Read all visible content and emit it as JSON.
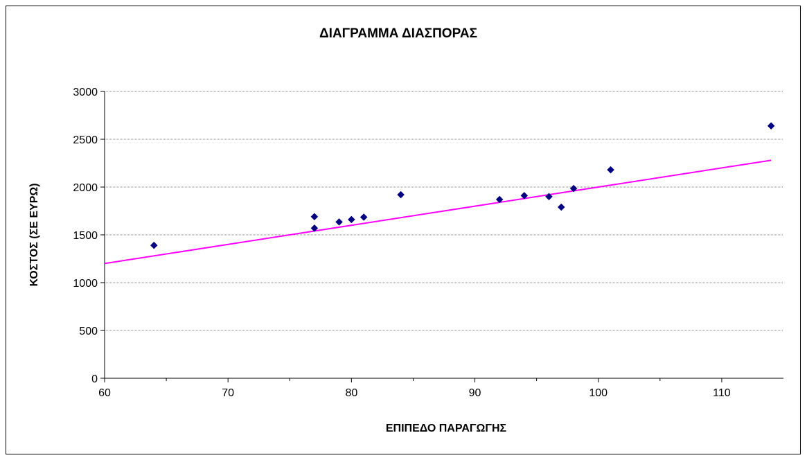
{
  "chart_data": {
    "type": "scatter",
    "title": "ΔΙΑΓΡΑΜΜΑ ΔΙΑΣΠΟΡΑΣ",
    "xlabel": "ΕΠΙΠΕΔΟ ΠΑΡΑΓΩΓΗΣ",
    "ylabel": "ΚΟΣΤΟΣ (ΣΕ ΕΥΡΩ)",
    "xlim": [
      60,
      115
    ],
    "ylim": [
      0,
      3000
    ],
    "x_ticks": [
      "60",
      "70",
      "80",
      "90",
      "100",
      "110"
    ],
    "y_ticks": [
      "0",
      "500",
      "1000",
      "1500",
      "2000",
      "2500",
      "3000"
    ],
    "grid": "horizontal",
    "legend": "none",
    "points": [
      {
        "x": 64,
        "y": 1390
      },
      {
        "x": 77,
        "y": 1690
      },
      {
        "x": 77,
        "y": 1570
      },
      {
        "x": 79,
        "y": 1635
      },
      {
        "x": 80,
        "y": 1660
      },
      {
        "x": 81,
        "y": 1685
      },
      {
        "x": 84,
        "y": 1920
      },
      {
        "x": 92,
        "y": 1870
      },
      {
        "x": 94,
        "y": 1910
      },
      {
        "x": 96,
        "y": 1900
      },
      {
        "x": 97,
        "y": 1790
      },
      {
        "x": 98,
        "y": 1985
      },
      {
        "x": 101,
        "y": 2180
      },
      {
        "x": 114,
        "y": 2640
      }
    ],
    "trendline": {
      "x": [
        60,
        114
      ],
      "y": [
        1200,
        2280
      ]
    },
    "colors": {
      "points": "#000080",
      "trendline": "#ff00ff",
      "grid": "#808080"
    }
  }
}
